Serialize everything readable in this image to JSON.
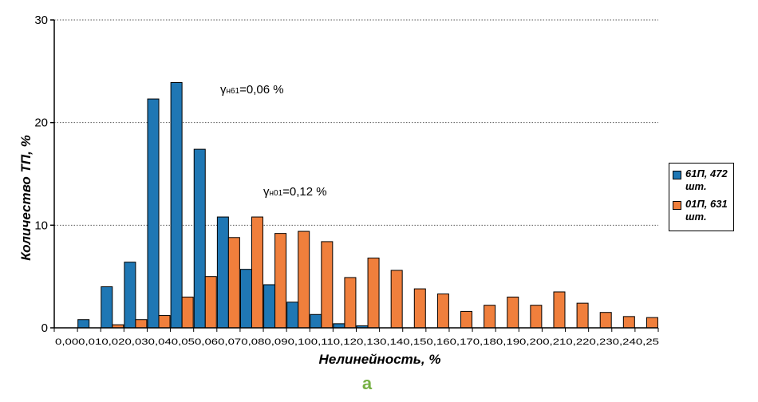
{
  "chart_data": {
    "type": "bar",
    "ylim": [
      0,
      30
    ],
    "yticks": [
      "0",
      "10",
      "20",
      "30"
    ],
    "ylabel": "Количество ТП, %",
    "xlabel": "Нелинейность, %",
    "grid": "horizontal dotted",
    "legend_position": "right",
    "categories": [
      "0,00",
      "0,01",
      "0,02",
      "0,03",
      "0,04",
      "0,05",
      "0,06",
      "0,07",
      "0,08",
      "0,09",
      "0,10",
      "0,11",
      "0,12",
      "0,13",
      "0,14",
      "0,15",
      "0,16",
      "0,17",
      "0,18",
      "0,19",
      "0,20",
      "0,21",
      "0,22",
      "0,23",
      "0,24",
      "0,25"
    ],
    "series": [
      {
        "name": "61П, 472 шт.",
        "color": "#1f77b4",
        "values": [
          0,
          0.8,
          4.0,
          6.4,
          22.3,
          23.9,
          17.4,
          10.8,
          5.7,
          4.2,
          2.5,
          1.3,
          0.4,
          0.2,
          0,
          0,
          0,
          0,
          0,
          0,
          0,
          0,
          0,
          0,
          0,
          0
        ]
      },
      {
        "name": "01П, 631 шт.",
        "color": "#f07f3c",
        "values": [
          0,
          0,
          0.3,
          0.8,
          1.2,
          3.0,
          5.0,
          8.8,
          10.8,
          9.2,
          9.4,
          8.4,
          4.9,
          6.8,
          5.6,
          3.8,
          3.3,
          1.6,
          2.2,
          3.0,
          2.2,
          3.5,
          2.4,
          1.5,
          1.1,
          1.0
        ]
      }
    ],
    "annotations": [
      {
        "symbol": "γ",
        "sub": "н61",
        "text": "=0,06 %"
      },
      {
        "symbol": "γ",
        "sub": "н01",
        "text": "=0,12 %"
      }
    ],
    "xtick_labels": "0,000,010,020,030,040,050,060,070,080,090,100,110,120,130,140,150,160,170,180,190,200,210,220,230,240,25",
    "panel_label": "а"
  },
  "legend": {
    "items": [
      {
        "color": "#1f77b4",
        "line1": "61П, 472",
        "line2": "шт."
      },
      {
        "color": "#f07f3c",
        "line1": "01П, 631",
        "line2": "шт."
      }
    ]
  }
}
